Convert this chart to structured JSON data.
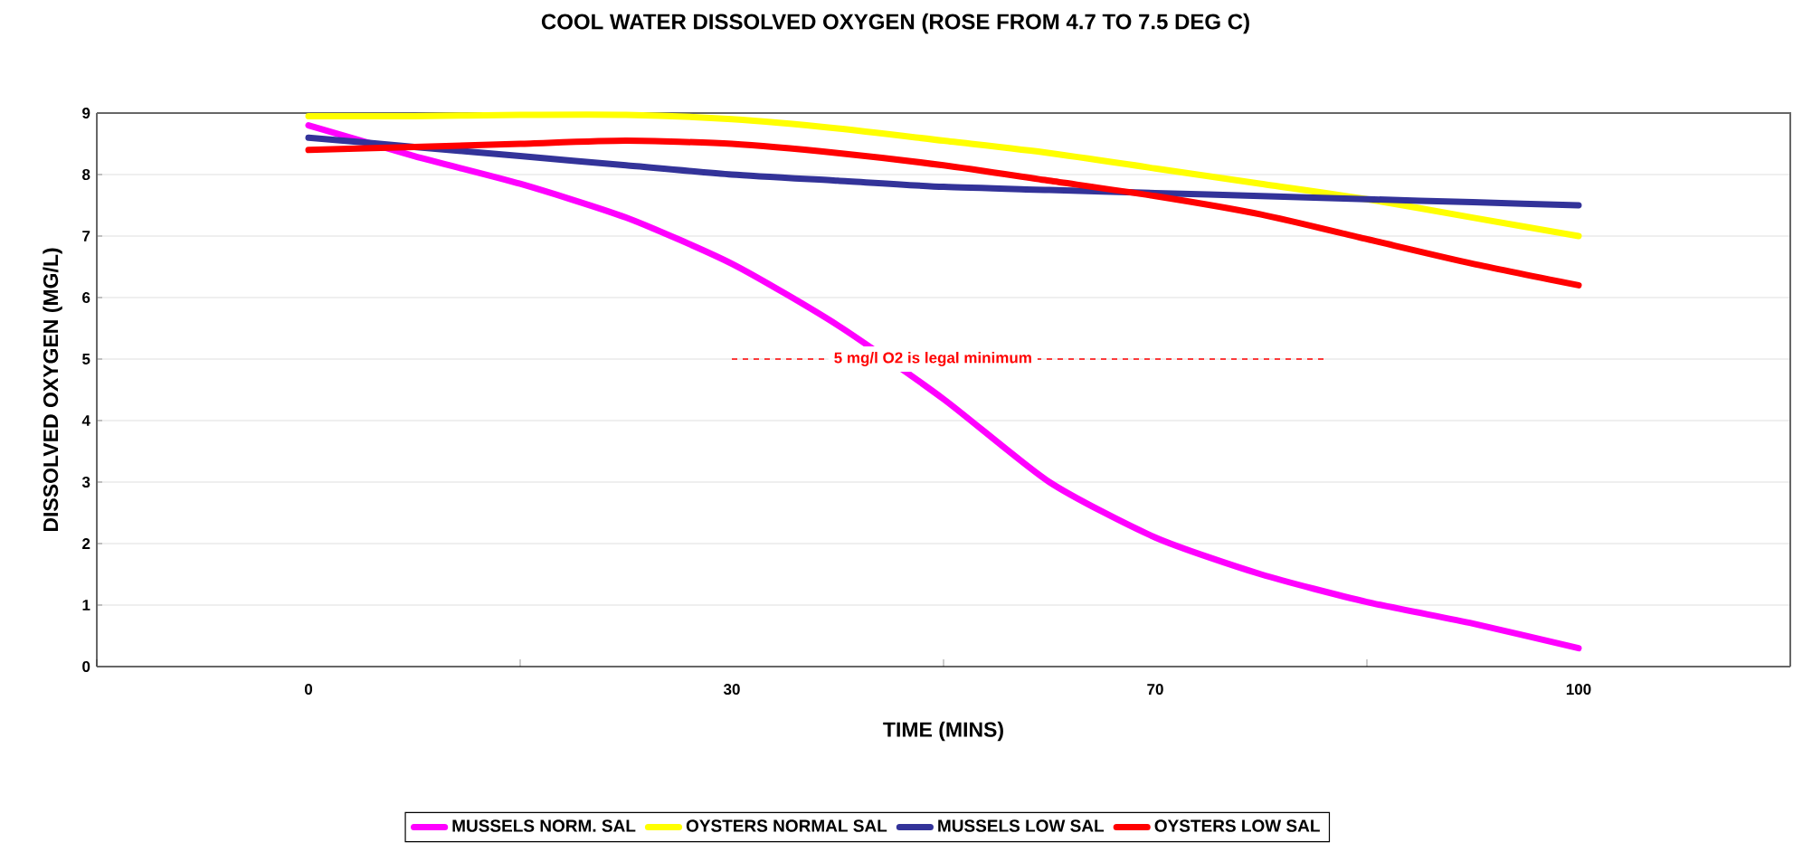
{
  "chart_data": {
    "type": "line",
    "title": "COOL WATER DISSOLVED OXYGEN (ROSE FROM 4.7 TO 7.5 DEG C)",
    "xlabel": "TIME (MINS)",
    "ylabel": "DISSOLVED OXYGEN (MG/L)",
    "categories": [
      "0",
      null,
      null,
      null,
      "30",
      null,
      null,
      null,
      "70",
      null,
      null,
      null,
      "100"
    ],
    "series": [
      {
        "name": "MUSSELS NORM. SAL",
        "color": "#ff00ff",
        "values": [
          8.8,
          8.3,
          7.85,
          7.3,
          6.55,
          5.55,
          4.35,
          3.0,
          2.1,
          1.5,
          1.05,
          0.7,
          0.3
        ]
      },
      {
        "name": "OYSTERS NORMAL SAL",
        "color": "#ffff00",
        "values": [
          8.95,
          8.95,
          8.97,
          8.97,
          8.9,
          8.75,
          8.55,
          8.35,
          8.1,
          7.85,
          7.6,
          7.3,
          7.0
        ]
      },
      {
        "name": "MUSSELS LOW SAL",
        "color": "#333399",
        "values": [
          8.6,
          8.45,
          8.3,
          8.15,
          8.0,
          7.9,
          7.8,
          7.75,
          7.7,
          7.65,
          7.6,
          7.55,
          7.5
        ]
      },
      {
        "name": "OYSTERS LOW SAL",
        "color": "#ff0000",
        "values": [
          8.4,
          8.45,
          8.5,
          8.55,
          8.5,
          8.35,
          8.15,
          7.9,
          7.65,
          7.35,
          6.95,
          6.55,
          6.2
        ]
      }
    ],
    "ylim": [
      0,
      9
    ],
    "yticks": [
      0,
      1,
      2,
      3,
      4,
      5,
      6,
      7,
      8,
      9
    ],
    "grid": "y",
    "legend": "bottom",
    "marker": "none",
    "line_style": "solid",
    "ref_lines": [
      {
        "axis": "y",
        "value": 5,
        "label": "5 mg/l O2 is legal minimum",
        "color": "#ff0000",
        "line_style": "dashed"
      }
    ]
  }
}
